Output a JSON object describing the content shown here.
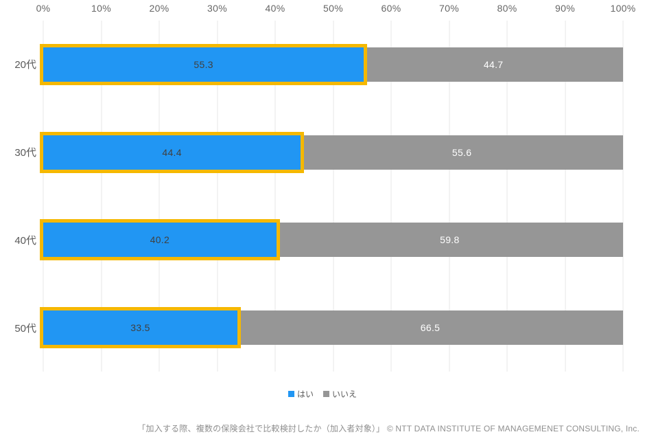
{
  "chart_data": {
    "type": "bar",
    "orientation": "horizontal-stacked",
    "title": "",
    "categories": [
      "20代",
      "30代",
      "40代",
      "50代"
    ],
    "series": [
      {
        "name": "はい",
        "values": [
          55.3,
          44.4,
          40.2,
          33.5
        ],
        "color": "#2196f3"
      },
      {
        "name": "いいえ",
        "values": [
          44.7,
          55.6,
          59.8,
          66.5
        ],
        "color": "#969696"
      }
    ],
    "x_ticks": [
      "0%",
      "10%",
      "20%",
      "30%",
      "40%",
      "50%",
      "60%",
      "70%",
      "80%",
      "90%",
      "100%"
    ],
    "xlim": [
      0,
      100
    ],
    "grid": true,
    "legend_position": "bottom",
    "highlight_border_color": "#f5b800",
    "gridline_color": "#e7e7e7"
  },
  "footer": {
    "text": "「加入する際、複数の保険会社で比較検討したか（加入者対象）」 © NTT DATA INSTITUTE OF MANAGEMENET CONSULTING, Inc."
  }
}
